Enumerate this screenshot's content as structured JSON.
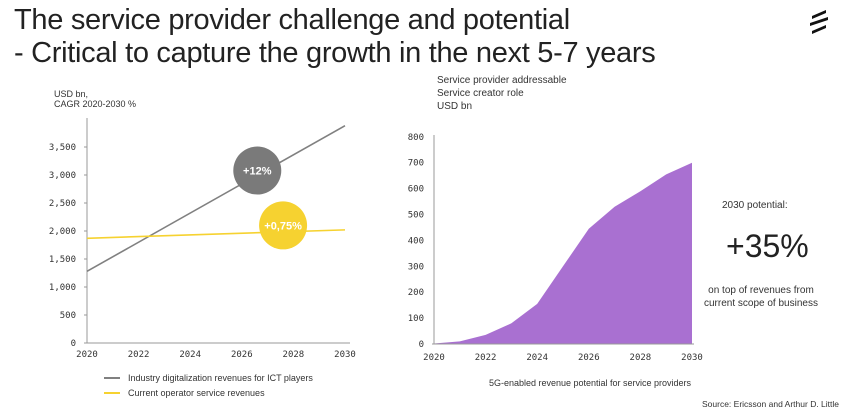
{
  "title_line1": "The service provider challenge and potential",
  "title_line2": "- Critical to capture the growth in the next 5-7 years",
  "logo": "ericsson-logo",
  "left_unit_line1": "USD bn,",
  "left_unit_line2": "CAGR 2020-2030 %",
  "right_unit_line1": "Service provider addressable",
  "right_unit_line2": "Service creator role",
  "right_unit_line3": "USD bn",
  "potential_label": "2030 potential:",
  "potential_value": "+35%",
  "potential_desc_line1": "on top of revenues from",
  "potential_desc_line2": "current scope of business",
  "source": "Source: Ericsson and Arthur D. Little",
  "colors": {
    "gray": "#808080",
    "yellow": "#f6d230",
    "purple": "#a970d1"
  },
  "chart_data": [
    {
      "type": "line",
      "x": [
        2020,
        2030
      ],
      "xticks": [
        "2020",
        "2022",
        "2024",
        "2026",
        "2028",
        "2030"
      ],
      "yticks": [
        "0",
        "500",
        "1,000",
        "1,500",
        "2,000",
        "2,500",
        "3,000",
        "3,500"
      ],
      "ylim": [
        0,
        3900
      ],
      "series": [
        {
          "name": "Industry digitalization revenues for  ICT players",
          "values": [
            1280,
            3880
          ],
          "color": "#808080",
          "badge": "+12%"
        },
        {
          "name": "Current operator service revenues",
          "values": [
            1870,
            2020
          ],
          "color": "#f6d230",
          "badge": "+0,75%"
        }
      ],
      "legend": "bottom"
    },
    {
      "type": "area",
      "x": [
        2020,
        2021,
        2022,
        2023,
        2024,
        2025,
        2026,
        2027,
        2028,
        2029,
        2030
      ],
      "values": [
        2,
        10,
        35,
        80,
        155,
        300,
        445,
        530,
        590,
        655,
        700
      ],
      "xticks": [
        "2020",
        "2022",
        "2024",
        "2026",
        "2028",
        "2030"
      ],
      "yticks": [
        "0",
        "100",
        "200",
        "300",
        "400",
        "500",
        "600",
        "700",
        "800"
      ],
      "ylim": [
        0,
        800
      ],
      "xlabel": "5G-enabled revenue potential for service providers",
      "color": "#a970d1"
    }
  ]
}
